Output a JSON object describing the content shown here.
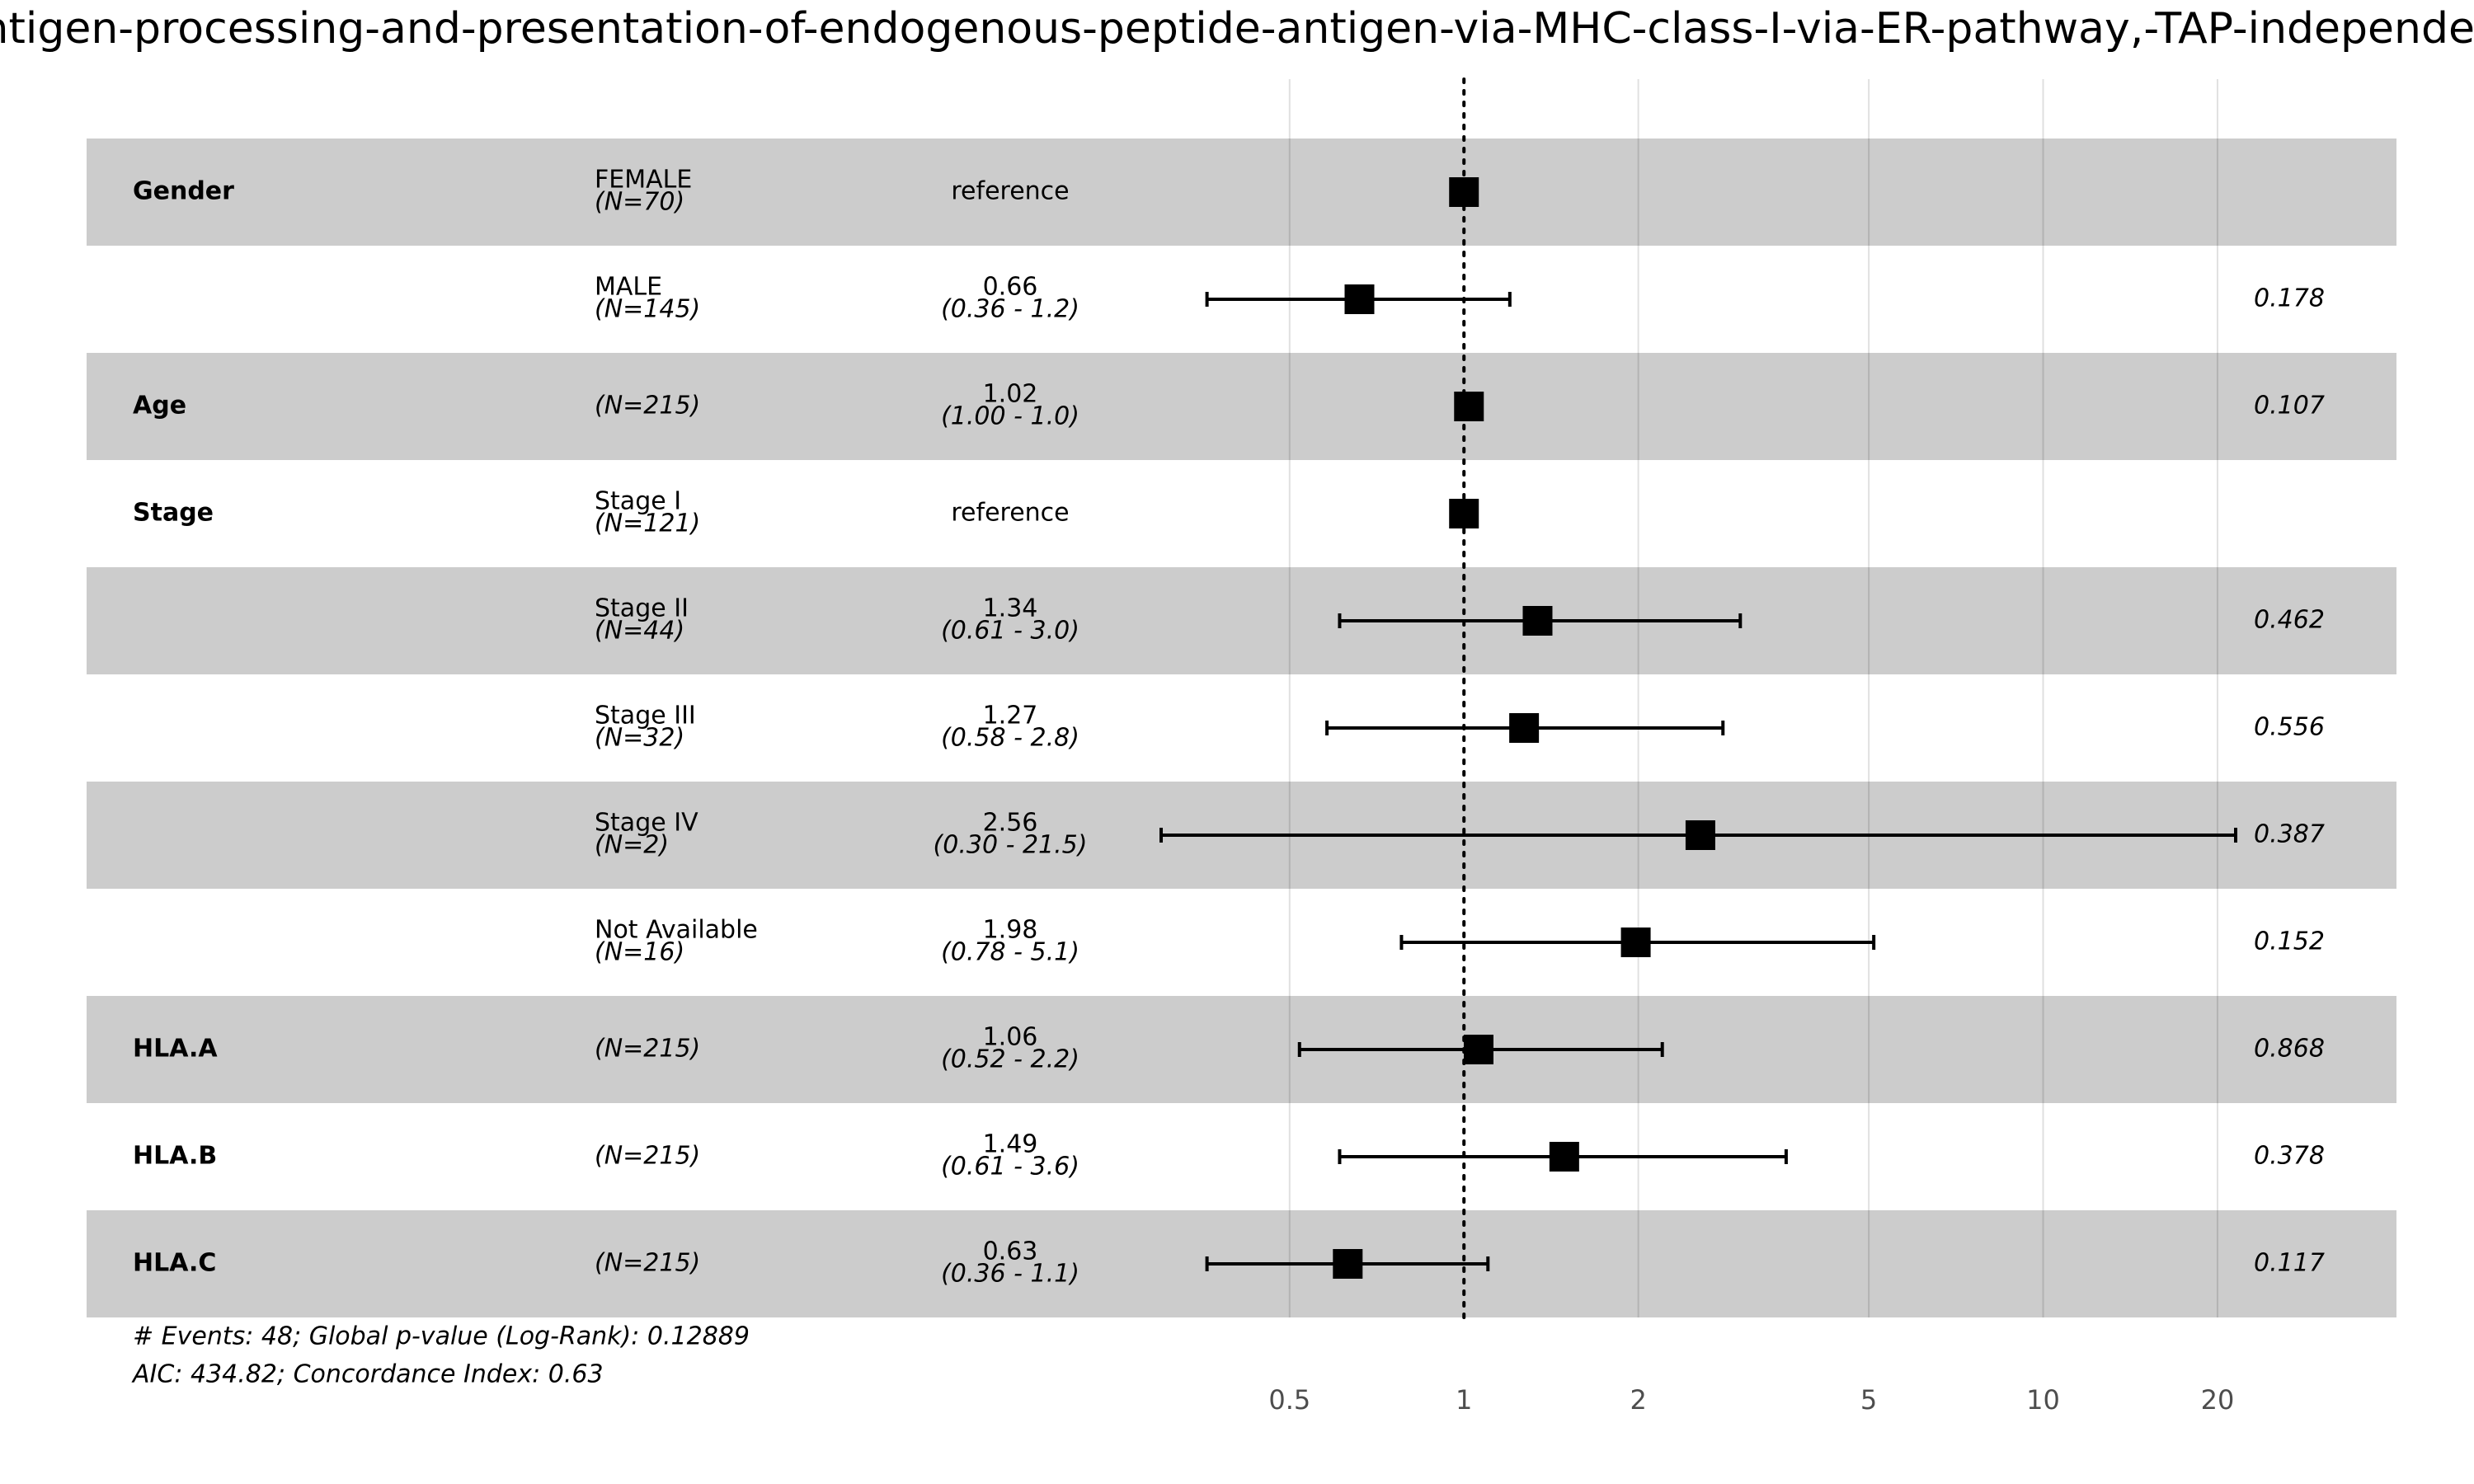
{
  "chart_data": {
    "type": "forest",
    "title": "antigen-processing-and-presentation-of-endogenous-peptide-antigen-via-MHC-class-I-via-ER-pathway,-TAP-independent",
    "log_scale": true,
    "xlim": [
      0.3,
      21.5
    ],
    "xticks": [
      0.5,
      1,
      2,
      5,
      10,
      20
    ],
    "reference_line": 1,
    "grid": true,
    "color": "#000000",
    "stripe_color": "#cccccc",
    "rows": [
      {
        "group": "Gender",
        "level": "FEMALE",
        "n": "(N=70)",
        "hr": 1,
        "hr_label": "reference"
      },
      {
        "level": "MALE",
        "n": "(N=145)",
        "hr": 0.66,
        "ci": [
          0.36,
          1.2
        ],
        "ci_label": "(0.36 -  1.2)",
        "p": 0.178
      },
      {
        "group": "Age",
        "n": "(N=215)",
        "hr": 1.02,
        "ci": [
          1.0,
          1.04
        ],
        "ci_label": "(1.00 -  1.0)",
        "p": 0.107
      },
      {
        "group": "Stage",
        "level": "Stage I",
        "n": "(N=121)",
        "hr": 1,
        "hr_label": "reference"
      },
      {
        "level": "Stage II",
        "n": "(N=44)",
        "hr": 1.34,
        "ci": [
          0.61,
          3.0
        ],
        "ci_label": "(0.61 -  3.0)",
        "p": 0.462
      },
      {
        "level": "Stage III",
        "n": "(N=32)",
        "hr": 1.27,
        "ci": [
          0.58,
          2.8
        ],
        "ci_label": "(0.58 -  2.8)",
        "p": 0.556
      },
      {
        "level": "Stage IV",
        "n": "(N=2)",
        "hr": 2.56,
        "ci": [
          0.3,
          21.5
        ],
        "ci_label": "(0.30 - 21.5)",
        "p": 0.387
      },
      {
        "level": "Not Available",
        "n": "(N=16)",
        "hr": 1.98,
        "ci": [
          0.78,
          5.1
        ],
        "ci_label": "(0.78 -  5.1)",
        "p": 0.152
      },
      {
        "group": "HLA.A",
        "n": "(N=215)",
        "hr": 1.06,
        "ci": [
          0.52,
          2.2
        ],
        "ci_label": "(0.52 -  2.2)",
        "p": 0.868
      },
      {
        "group": "HLA.B",
        "n": "(N=215)",
        "hr": 1.49,
        "ci": [
          0.61,
          3.6
        ],
        "ci_label": "(0.61 -  3.6)",
        "p": 0.378
      },
      {
        "group": "HLA.C",
        "n": "(N=215)",
        "hr": 0.63,
        "ci": [
          0.36,
          1.1
        ],
        "ci_label": "(0.36 -  1.1)",
        "p": 0.117
      }
    ],
    "footnotes": [
      "# Events: 48; Global p-value (Log-Rank): 0.12889",
      "AIC: 434.82; Concordance Index: 0.63"
    ]
  }
}
